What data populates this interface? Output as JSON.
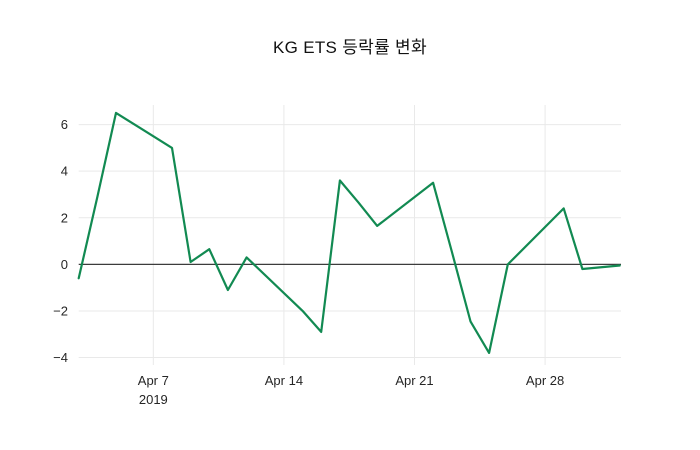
{
  "title": "KG ETS 등락률 변화",
  "chart_data": {
    "type": "line",
    "title": "KG ETS 등락률 변화",
    "legend": "none",
    "grid": true,
    "zeroline": true,
    "x_axis": {
      "kind": "date",
      "tick_labels": [
        "Apr 7",
        "Apr 14",
        "Apr 21",
        "Apr 28"
      ],
      "tick_sublabel": "2019",
      "tick_day_offsets": [
        4,
        11,
        18,
        25
      ],
      "range_day_offsets": [
        0,
        29
      ]
    },
    "y_axis": {
      "tick_labels": [
        "6",
        "4",
        "2",
        "0",
        "−2",
        "−4"
      ],
      "tick_values": [
        6,
        4,
        2,
        0,
        -2,
        -4
      ],
      "ylim": [
        -4.32,
        6.84
      ]
    },
    "series": [
      {
        "name": "KG ETS 등락률",
        "color": "#128a52",
        "points": [
          {
            "date": "Apr 3",
            "day_offset": 0,
            "value": -0.6
          },
          {
            "date": "Apr 4",
            "day_offset": 1,
            "value": 2.9
          },
          {
            "date": "Apr 5",
            "day_offset": 2,
            "value": 6.5
          },
          {
            "date": "Apr 8",
            "day_offset": 5,
            "value": 5.0
          },
          {
            "date": "Apr 9",
            "day_offset": 6,
            "value": 0.1
          },
          {
            "date": "Apr 10",
            "day_offset": 7,
            "value": 0.65
          },
          {
            "date": "Apr 11",
            "day_offset": 8,
            "value": -1.1
          },
          {
            "date": "Apr 12",
            "day_offset": 9,
            "value": 0.3
          },
          {
            "date": "Apr 15",
            "day_offset": 12,
            "value": -2.0
          },
          {
            "date": "Apr 16",
            "day_offset": 13,
            "value": -2.9
          },
          {
            "date": "Apr 17",
            "day_offset": 14,
            "value": 3.6
          },
          {
            "date": "Apr 18",
            "day_offset": 15,
            "value": 2.65
          },
          {
            "date": "Apr 19",
            "day_offset": 16,
            "value": 1.65
          },
          {
            "date": "Apr 22",
            "day_offset": 19,
            "value": 3.5
          },
          {
            "date": "Apr 23",
            "day_offset": 20,
            "value": 0.55
          },
          {
            "date": "Apr 24",
            "day_offset": 21,
            "value": -2.45
          },
          {
            "date": "Apr 25",
            "day_offset": 22,
            "value": -3.8
          },
          {
            "date": "Apr 26",
            "day_offset": 23,
            "value": 0.0
          },
          {
            "date": "Apr 29",
            "day_offset": 26,
            "value": 2.4
          },
          {
            "date": "Apr 30",
            "day_offset": 27,
            "value": -0.2
          },
          {
            "date": "May 2",
            "day_offset": 29,
            "value": -0.05
          }
        ]
      }
    ],
    "colors": {
      "line": "#128a52",
      "gridline": "#e9e9e9",
      "zeroline": "#3c3c3c",
      "tick_text": "#262626",
      "background": "#ffffff"
    }
  }
}
